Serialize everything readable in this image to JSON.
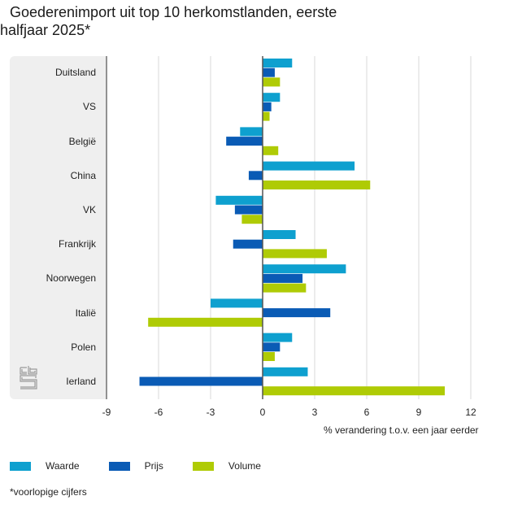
{
  "title": {
    "line1": "Goederenimport uit top 10 herkomstlanden, eerste",
    "line2": "halfjaar 2025*"
  },
  "footnote": "*voorlopige cijfers",
  "logo": "cbs-logo-icon",
  "chart_data": {
    "type": "bar",
    "orientation": "horizontal",
    "title": "Goederenimport uit top 10 herkomstlanden, eerste halfjaar 2025*",
    "xlabel": "% verandering t.o.v. een jaar eerder",
    "ylabel": "",
    "xlim": [
      -9,
      12
    ],
    "xticks": [
      -9,
      -6,
      -3,
      0,
      3,
      6,
      9,
      12
    ],
    "xtick_labels": [
      "-9",
      "-6",
      "-3",
      "0",
      "3",
      "6",
      "9",
      "12"
    ],
    "grid": true,
    "legend_position": "bottom-left",
    "categories": [
      "Duitsland",
      "VS",
      "België",
      "China",
      "VK",
      "Frankrijk",
      "Noorwegen",
      "Italië",
      "Polen",
      "Ierland"
    ],
    "series": [
      {
        "name": "Waarde",
        "color": "#0ea0cf",
        "values": [
          1.7,
          1.0,
          -1.3,
          5.3,
          -2.7,
          1.9,
          4.8,
          -3.0,
          1.7,
          2.6
        ]
      },
      {
        "name": "Prijs",
        "color": "#0a5bb5",
        "values": [
          0.7,
          0.5,
          -2.1,
          -0.8,
          -1.6,
          -1.7,
          2.3,
          3.9,
          1.0,
          -7.1
        ]
      },
      {
        "name": "Volume",
        "color": "#afcb05",
        "values": [
          1.0,
          0.4,
          0.9,
          6.2,
          -1.2,
          3.7,
          2.5,
          -6.6,
          0.7,
          10.5
        ]
      }
    ]
  }
}
